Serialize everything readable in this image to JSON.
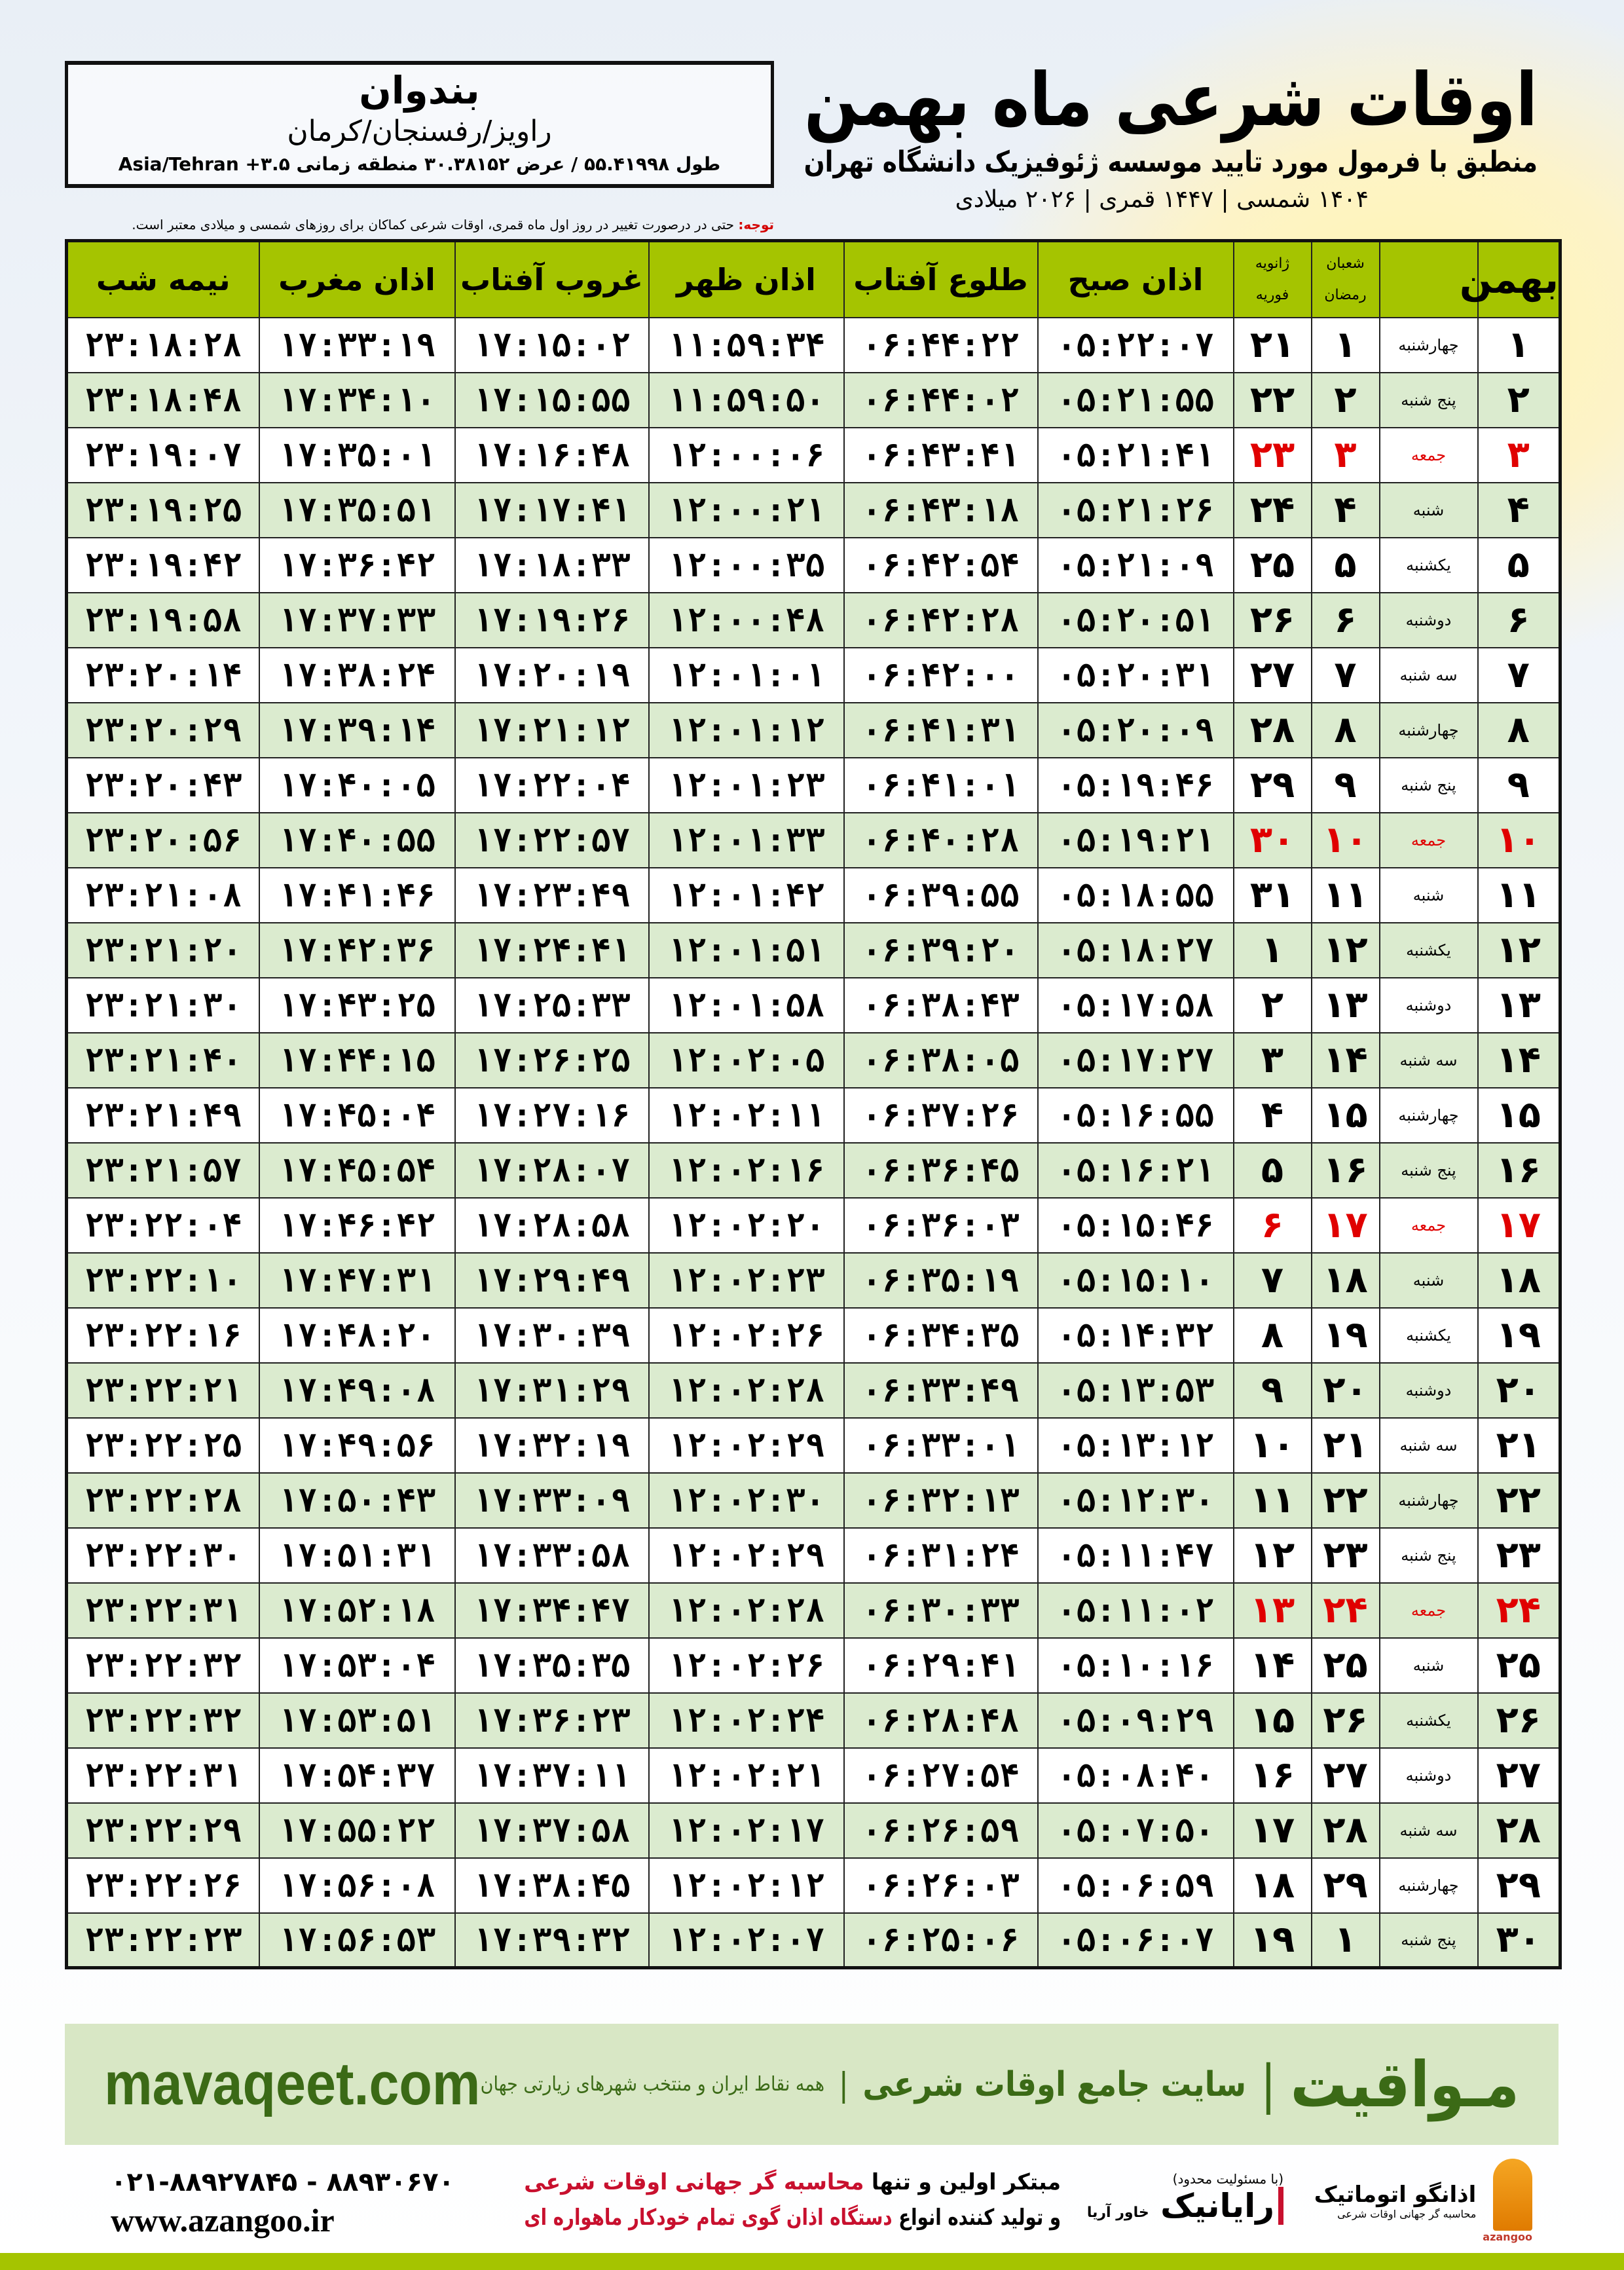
{
  "location": {
    "city": "بندوان",
    "region": "راویز/رفسنجان/کرمان",
    "coords": "طول ۵۵.۴۱۹۹۸ / عرض ۳۰.۳۸۱۵۲ منطقه زمانی ۳.۵+ Asia/Tehran"
  },
  "header": {
    "title": "اوقات شرعی ماه بهمن",
    "subtitle": "منطبق با فرمول مورد تایید موسسه ژئوفیزیک دانشگاه تهران",
    "dates": "۱۴۰۴ شمسی | ۱۴۴۷ قمری | ۲۰۲۶ میلادی"
  },
  "note": {
    "label": "توجه:",
    "text": " حتی در درصورت تغییر در روز اول ماه قمری، اوقات شرعی کماکان برای روزهای شمسی و میلادی معتبر است."
  },
  "table": {
    "columns": {
      "month": "بهمن",
      "hijri_top": "شعبان",
      "hijri_bottom": "رمضان",
      "greg_top": "ژانویه",
      "greg_bottom": "فوریه",
      "fajr": "اذان صبح",
      "sunrise": "طلوع آفتاب",
      "dhuhr": "اذان ظهر",
      "sunset": "غروب آفتاب",
      "maghrib": "اذان مغرب",
      "midnight": "نیمه شب"
    },
    "highlight_color": "#e00000",
    "header_color": "#a5c400",
    "alt_row_color": "#dbebcf",
    "rows": [
      {
        "day": "۱",
        "weekday": "چهارشنبه",
        "hijri": "۱",
        "greg": "۲۱",
        "fajr": "۰۵:۲۲:۰۷",
        "sunrise": "۰۶:۴۴:۲۲",
        "dhuhr": "۱۱:۵۹:۳۴",
        "sunset": "۱۷:۱۵:۰۲",
        "maghrib": "۱۷:۳۳:۱۹",
        "midnight": "۲۳:۱۸:۲۸",
        "friday": false
      },
      {
        "day": "۲",
        "weekday": "پنج شنبه",
        "hijri": "۲",
        "greg": "۲۲",
        "fajr": "۰۵:۲۱:۵۵",
        "sunrise": "۰۶:۴۴:۰۲",
        "dhuhr": "۱۱:۵۹:۵۰",
        "sunset": "۱۷:۱۵:۵۵",
        "maghrib": "۱۷:۳۴:۱۰",
        "midnight": "۲۳:۱۸:۴۸",
        "friday": false
      },
      {
        "day": "۳",
        "weekday": "جمعه",
        "hijri": "۳",
        "greg": "۲۳",
        "fajr": "۰۵:۲۱:۴۱",
        "sunrise": "۰۶:۴۳:۴۱",
        "dhuhr": "۱۲:۰۰:۰۶",
        "sunset": "۱۷:۱۶:۴۸",
        "maghrib": "۱۷:۳۵:۰۱",
        "midnight": "۲۳:۱۹:۰۷",
        "friday": true
      },
      {
        "day": "۴",
        "weekday": "شنبه",
        "hijri": "۴",
        "greg": "۲۴",
        "fajr": "۰۵:۲۱:۲۶",
        "sunrise": "۰۶:۴۳:۱۸",
        "dhuhr": "۱۲:۰۰:۲۱",
        "sunset": "۱۷:۱۷:۴۱",
        "maghrib": "۱۷:۳۵:۵۱",
        "midnight": "۲۳:۱۹:۲۵",
        "friday": false
      },
      {
        "day": "۵",
        "weekday": "یکشنبه",
        "hijri": "۵",
        "greg": "۲۵",
        "fajr": "۰۵:۲۱:۰۹",
        "sunrise": "۰۶:۴۲:۵۴",
        "dhuhr": "۱۲:۰۰:۳۵",
        "sunset": "۱۷:۱۸:۳۳",
        "maghrib": "۱۷:۳۶:۴۲",
        "midnight": "۲۳:۱۹:۴۲",
        "friday": false
      },
      {
        "day": "۶",
        "weekday": "دوشنبه",
        "hijri": "۶",
        "greg": "۲۶",
        "fajr": "۰۵:۲۰:۵۱",
        "sunrise": "۰۶:۴۲:۲۸",
        "dhuhr": "۱۲:۰۰:۴۸",
        "sunset": "۱۷:۱۹:۲۶",
        "maghrib": "۱۷:۳۷:۳۳",
        "midnight": "۲۳:۱۹:۵۸",
        "friday": false
      },
      {
        "day": "۷",
        "weekday": "سه شنبه",
        "hijri": "۷",
        "greg": "۲۷",
        "fajr": "۰۵:۲۰:۳۱",
        "sunrise": "۰۶:۴۲:۰۰",
        "dhuhr": "۱۲:۰۱:۰۱",
        "sunset": "۱۷:۲۰:۱۹",
        "maghrib": "۱۷:۳۸:۲۴",
        "midnight": "۲۳:۲۰:۱۴",
        "friday": false
      },
      {
        "day": "۸",
        "weekday": "چهارشنبه",
        "hijri": "۸",
        "greg": "۲۸",
        "fajr": "۰۵:۲۰:۰۹",
        "sunrise": "۰۶:۴۱:۳۱",
        "dhuhr": "۱۲:۰۱:۱۲",
        "sunset": "۱۷:۲۱:۱۲",
        "maghrib": "۱۷:۳۹:۱۴",
        "midnight": "۲۳:۲۰:۲۹",
        "friday": false
      },
      {
        "day": "۹",
        "weekday": "پنج شنبه",
        "hijri": "۹",
        "greg": "۲۹",
        "fajr": "۰۵:۱۹:۴۶",
        "sunrise": "۰۶:۴۱:۰۱",
        "dhuhr": "۱۲:۰۱:۲۳",
        "sunset": "۱۷:۲۲:۰۴",
        "maghrib": "۱۷:۴۰:۰۵",
        "midnight": "۲۳:۲۰:۴۳",
        "friday": false
      },
      {
        "day": "۱۰",
        "weekday": "جمعه",
        "hijri": "۱۰",
        "greg": "۳۰",
        "fajr": "۰۵:۱۹:۲۱",
        "sunrise": "۰۶:۴۰:۲۸",
        "dhuhr": "۱۲:۰۱:۳۳",
        "sunset": "۱۷:۲۲:۵۷",
        "maghrib": "۱۷:۴۰:۵۵",
        "midnight": "۲۳:۲۰:۵۶",
        "friday": true
      },
      {
        "day": "۱۱",
        "weekday": "شنبه",
        "hijri": "۱۱",
        "greg": "۳۱",
        "fajr": "۰۵:۱۸:۵۵",
        "sunrise": "۰۶:۳۹:۵۵",
        "dhuhr": "۱۲:۰۱:۴۲",
        "sunset": "۱۷:۲۳:۴۹",
        "maghrib": "۱۷:۴۱:۴۶",
        "midnight": "۲۳:۲۱:۰۸",
        "friday": false
      },
      {
        "day": "۱۲",
        "weekday": "یکشنبه",
        "hijri": "۱۲",
        "greg": "۱",
        "fajr": "۰۵:۱۸:۲۷",
        "sunrise": "۰۶:۳۹:۲۰",
        "dhuhr": "۱۲:۰۱:۵۱",
        "sunset": "۱۷:۲۴:۴۱",
        "maghrib": "۱۷:۴۲:۳۶",
        "midnight": "۲۳:۲۱:۲۰",
        "friday": false
      },
      {
        "day": "۱۳",
        "weekday": "دوشنبه",
        "hijri": "۱۳",
        "greg": "۲",
        "fajr": "۰۵:۱۷:۵۸",
        "sunrise": "۰۶:۳۸:۴۳",
        "dhuhr": "۱۲:۰۱:۵۸",
        "sunset": "۱۷:۲۵:۳۳",
        "maghrib": "۱۷:۴۳:۲۵",
        "midnight": "۲۳:۲۱:۳۰",
        "friday": false
      },
      {
        "day": "۱۴",
        "weekday": "سه شنبه",
        "hijri": "۱۴",
        "greg": "۳",
        "fajr": "۰۵:۱۷:۲۷",
        "sunrise": "۰۶:۳۸:۰۵",
        "dhuhr": "۱۲:۰۲:۰۵",
        "sunset": "۱۷:۲۶:۲۵",
        "maghrib": "۱۷:۴۴:۱۵",
        "midnight": "۲۳:۲۱:۴۰",
        "friday": false
      },
      {
        "day": "۱۵",
        "weekday": "چهارشنبه",
        "hijri": "۱۵",
        "greg": "۴",
        "fajr": "۰۵:۱۶:۵۵",
        "sunrise": "۰۶:۳۷:۲۶",
        "dhuhr": "۱۲:۰۲:۱۱",
        "sunset": "۱۷:۲۷:۱۶",
        "maghrib": "۱۷:۴۵:۰۴",
        "midnight": "۲۳:۲۱:۴۹",
        "friday": false
      },
      {
        "day": "۱۶",
        "weekday": "پنج شنبه",
        "hijri": "۱۶",
        "greg": "۵",
        "fajr": "۰۵:۱۶:۲۱",
        "sunrise": "۰۶:۳۶:۴۵",
        "dhuhr": "۱۲:۰۲:۱۶",
        "sunset": "۱۷:۲۸:۰۷",
        "maghrib": "۱۷:۴۵:۵۴",
        "midnight": "۲۳:۲۱:۵۷",
        "friday": false
      },
      {
        "day": "۱۷",
        "weekday": "جمعه",
        "hijri": "۱۷",
        "greg": "۶",
        "fajr": "۰۵:۱۵:۴۶",
        "sunrise": "۰۶:۳۶:۰۳",
        "dhuhr": "۱۲:۰۲:۲۰",
        "sunset": "۱۷:۲۸:۵۸",
        "maghrib": "۱۷:۴۶:۴۲",
        "midnight": "۲۳:۲۲:۰۴",
        "friday": true
      },
      {
        "day": "۱۸",
        "weekday": "شنبه",
        "hijri": "۱۸",
        "greg": "۷",
        "fajr": "۰۵:۱۵:۱۰",
        "sunrise": "۰۶:۳۵:۱۹",
        "dhuhr": "۱۲:۰۲:۲۳",
        "sunset": "۱۷:۲۹:۴۹",
        "maghrib": "۱۷:۴۷:۳۱",
        "midnight": "۲۳:۲۲:۱۰",
        "friday": false
      },
      {
        "day": "۱۹",
        "weekday": "یکشنبه",
        "hijri": "۱۹",
        "greg": "۸",
        "fajr": "۰۵:۱۴:۳۲",
        "sunrise": "۰۶:۳۴:۳۵",
        "dhuhr": "۱۲:۰۲:۲۶",
        "sunset": "۱۷:۳۰:۳۹",
        "maghrib": "۱۷:۴۸:۲۰",
        "midnight": "۲۳:۲۲:۱۶",
        "friday": false
      },
      {
        "day": "۲۰",
        "weekday": "دوشنبه",
        "hijri": "۲۰",
        "greg": "۹",
        "fajr": "۰۵:۱۳:۵۳",
        "sunrise": "۰۶:۳۳:۴۹",
        "dhuhr": "۱۲:۰۲:۲۸",
        "sunset": "۱۷:۳۱:۲۹",
        "maghrib": "۱۷:۴۹:۰۸",
        "midnight": "۲۳:۲۲:۲۱",
        "friday": false
      },
      {
        "day": "۲۱",
        "weekday": "سه شنبه",
        "hijri": "۲۱",
        "greg": "۱۰",
        "fajr": "۰۵:۱۳:۱۲",
        "sunrise": "۰۶:۳۳:۰۱",
        "dhuhr": "۱۲:۰۲:۲۹",
        "sunset": "۱۷:۳۲:۱۹",
        "maghrib": "۱۷:۴۹:۵۶",
        "midnight": "۲۳:۲۲:۲۵",
        "friday": false
      },
      {
        "day": "۲۲",
        "weekday": "چهارشنبه",
        "hijri": "۲۲",
        "greg": "۱۱",
        "fajr": "۰۵:۱۲:۳۰",
        "sunrise": "۰۶:۳۲:۱۳",
        "dhuhr": "۱۲:۰۲:۳۰",
        "sunset": "۱۷:۳۳:۰۹",
        "maghrib": "۱۷:۵۰:۴۳",
        "midnight": "۲۳:۲۲:۲۸",
        "friday": false
      },
      {
        "day": "۲۳",
        "weekday": "پنج شنبه",
        "hijri": "۲۳",
        "greg": "۱۲",
        "fajr": "۰۵:۱۱:۴۷",
        "sunrise": "۰۶:۳۱:۲۴",
        "dhuhr": "۱۲:۰۲:۲۹",
        "sunset": "۱۷:۳۳:۵۸",
        "maghrib": "۱۷:۵۱:۳۱",
        "midnight": "۲۳:۲۲:۳۰",
        "friday": false
      },
      {
        "day": "۲۴",
        "weekday": "جمعه",
        "hijri": "۲۴",
        "greg": "۱۳",
        "fajr": "۰۵:۱۱:۰۲",
        "sunrise": "۰۶:۳۰:۳۳",
        "dhuhr": "۱۲:۰۲:۲۸",
        "sunset": "۱۷:۳۴:۴۷",
        "maghrib": "۱۷:۵۲:۱۸",
        "midnight": "۲۳:۲۲:۳۱",
        "friday": true
      },
      {
        "day": "۲۵",
        "weekday": "شنبه",
        "hijri": "۲۵",
        "greg": "۱۴",
        "fajr": "۰۵:۱۰:۱۶",
        "sunrise": "۰۶:۲۹:۴۱",
        "dhuhr": "۱۲:۰۲:۲۶",
        "sunset": "۱۷:۳۵:۳۵",
        "maghrib": "۱۷:۵۳:۰۴",
        "midnight": "۲۳:۲۲:۳۲",
        "friday": false
      },
      {
        "day": "۲۶",
        "weekday": "یکشنبه",
        "hijri": "۲۶",
        "greg": "۱۵",
        "fajr": "۰۵:۰۹:۲۹",
        "sunrise": "۰۶:۲۸:۴۸",
        "dhuhr": "۱۲:۰۲:۲۴",
        "sunset": "۱۷:۳۶:۲۳",
        "maghrib": "۱۷:۵۳:۵۱",
        "midnight": "۲۳:۲۲:۳۲",
        "friday": false
      },
      {
        "day": "۲۷",
        "weekday": "دوشنبه",
        "hijri": "۲۷",
        "greg": "۱۶",
        "fajr": "۰۵:۰۸:۴۰",
        "sunrise": "۰۶:۲۷:۵۴",
        "dhuhr": "۱۲:۰۲:۲۱",
        "sunset": "۱۷:۳۷:۱۱",
        "maghrib": "۱۷:۵۴:۳۷",
        "midnight": "۲۳:۲۲:۳۱",
        "friday": false
      },
      {
        "day": "۲۸",
        "weekday": "سه شنبه",
        "hijri": "۲۸",
        "greg": "۱۷",
        "fajr": "۰۵:۰۷:۵۰",
        "sunrise": "۰۶:۲۶:۵۹",
        "dhuhr": "۱۲:۰۲:۱۷",
        "sunset": "۱۷:۳۷:۵۸",
        "maghrib": "۱۷:۵۵:۲۲",
        "midnight": "۲۳:۲۲:۲۹",
        "friday": false
      },
      {
        "day": "۲۹",
        "weekday": "چهارشنبه",
        "hijri": "۲۹",
        "greg": "۱۸",
        "fajr": "۰۵:۰۶:۵۹",
        "sunrise": "۰۶:۲۶:۰۳",
        "dhuhr": "۱۲:۰۲:۱۲",
        "sunset": "۱۷:۳۸:۴۵",
        "maghrib": "۱۷:۵۶:۰۸",
        "midnight": "۲۳:۲۲:۲۶",
        "friday": false
      },
      {
        "day": "۳۰",
        "weekday": "پنج شنبه",
        "hijri": "۱",
        "greg": "۱۹",
        "fajr": "۰۵:۰۶:۰۷",
        "sunrise": "۰۶:۲۵:۰۶",
        "dhuhr": "۱۲:۰۲:۰۷",
        "sunset": "۱۷:۳۹:۳۲",
        "maghrib": "۱۷:۵۶:۵۳",
        "midnight": "۲۳:۲۲:۲۳",
        "friday": false
      }
    ]
  },
  "footer": {
    "brand": "مـواقیت",
    "sep": "|",
    "slogan": "سایت جامع اوقات شرعی",
    "sep2": "|",
    "sub": "همه نقاط ایران و منتخب شهرهای زیارتی جهان",
    "site": "mavaqeet.com",
    "bg_color": "#d8e7c5",
    "text_color": "#3b6a16"
  },
  "bottom": {
    "logo1_name": "اذانگو اتوماتیک",
    "logo1_sub": "محاسبه گر جهانی اوقات شرعی",
    "logo1_latin": "azangoo",
    "logo2_small": "(با مسئولیت محدود)",
    "logo2_name": "رایانیک",
    "logo2_side": "خاور آریا",
    "promo_line1_a": "مبتکر اولین و تنها ",
    "promo_line1_b": "محاسبه گر جهانی اوقات شرعی",
    "promo_line2_a": "و تولید کننده انواع ",
    "promo_line2_b": "دستگاه اذان گوی تمام خودکار ماهواره ای",
    "phone": "۰۲۱-۸۸۹۲۷۸۴۵ - ۸۸۹۳۰۶۷۰",
    "website": "www.azangoo.ir"
  }
}
